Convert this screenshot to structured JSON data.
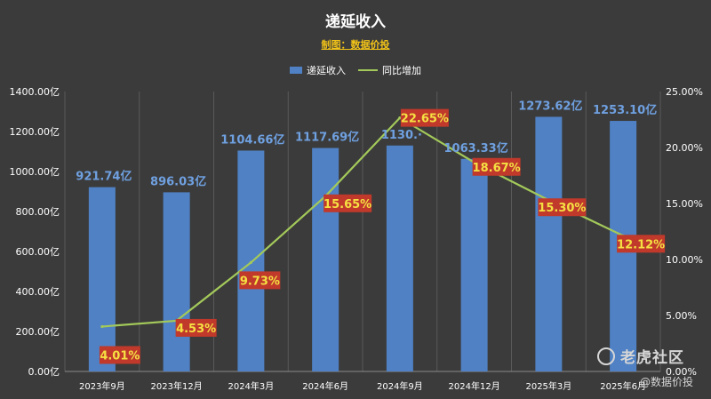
{
  "chart_data": {
    "type": "bar+line",
    "title": "递延收入",
    "subtitle": "制图：数据价投",
    "categories": [
      "2023年9月",
      "2023年12月",
      "2024年3月",
      "2024年6月",
      "2024年9月",
      "2024年12月",
      "2025年3月",
      "2025年6月"
    ],
    "series": [
      {
        "name": "递延收入",
        "kind": "bar",
        "axis": "left",
        "color": "#4f81c4",
        "values": [
          921.74,
          896.03,
          1104.66,
          1117.69,
          1130.0,
          1063.33,
          1273.62,
          1253.1
        ],
        "labels": [
          "921.74亿",
          "896.03亿",
          "1104.66亿",
          "1117.69亿",
          "1130.·",
          "1063.33亿",
          "1273.62亿",
          "1253.10亿"
        ]
      },
      {
        "name": "同比增加",
        "kind": "line",
        "axis": "right",
        "color": "#a3c95a",
        "values": [
          4.01,
          4.53,
          9.73,
          15.65,
          22.65,
          18.67,
          15.3,
          12.12
        ],
        "labels": [
          "4.01%",
          "4.53%",
          "9.73%",
          "15.65%",
          "22.65%",
          "18.67%",
          "15.30%",
          "12.12%"
        ]
      }
    ],
    "y_left": {
      "range": [
        0,
        1400
      ],
      "ticks": [
        0,
        200,
        400,
        600,
        800,
        1000,
        1200,
        1400
      ],
      "tick_labels": [
        "0.00亿",
        "200.00亿",
        "400.00亿",
        "600.00亿",
        "800.00亿",
        "1000.00亿",
        "1200.00亿",
        "1400.00亿"
      ]
    },
    "y_right": {
      "range": [
        0,
        25
      ],
      "ticks": [
        0,
        5,
        10,
        15,
        20,
        25
      ],
      "tick_labels": [
        "0.00%",
        "5.00%",
        "10.00%",
        "15.00%",
        "20.00%",
        "25.00%"
      ]
    },
    "grid": "vertical",
    "legend_position": "top-center",
    "colors": {
      "background": "#3b3b3b",
      "bar_label": "#6fa0e0",
      "pct_label_bg": "#c0392b",
      "pct_label_text": "#f5e042",
      "axis_text": "#ffffff",
      "grid": "#5a5a5a"
    }
  },
  "watermark": {
    "brand": "老虎社区",
    "handle": "@数据价投"
  }
}
